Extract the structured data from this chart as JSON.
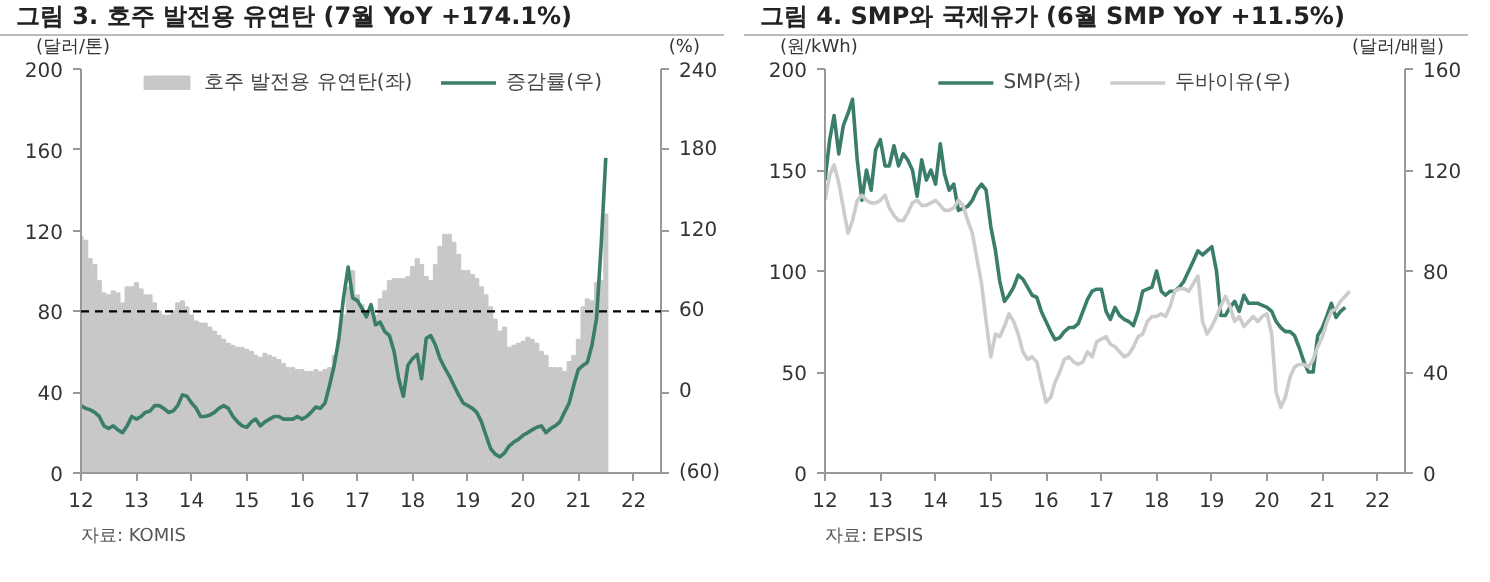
{
  "chart_data": [
    {
      "type": "bar",
      "title": "그림 3. 호주 발전용 유연탄 (7월 YoY +174.1%)",
      "ylabel": "(달러/톤)",
      "y2label": "(%)",
      "annotations": [
        "자료: KOMIS"
      ],
      "x": [
        "2012-01",
        "2012-02",
        "2012-03",
        "2012-04",
        "2012-05",
        "2012-06",
        "2012-07",
        "2012-08",
        "2012-09",
        "2012-10",
        "2012-11",
        "2012-12",
        "2013-01",
        "2013-02",
        "2013-03",
        "2013-04",
        "2013-05",
        "2013-06",
        "2013-07",
        "2013-08",
        "2013-09",
        "2013-10",
        "2013-11",
        "2013-12",
        "2014-01",
        "2014-02",
        "2014-03",
        "2014-04",
        "2014-05",
        "2014-06",
        "2014-07",
        "2014-08",
        "2014-09",
        "2014-10",
        "2014-11",
        "2014-12",
        "2015-01",
        "2015-02",
        "2015-03",
        "2015-04",
        "2015-05",
        "2015-06",
        "2015-07",
        "2015-08",
        "2015-09",
        "2015-10",
        "2015-11",
        "2015-12",
        "2016-01",
        "2016-02",
        "2016-03",
        "2016-04",
        "2016-05",
        "2016-06",
        "2016-07",
        "2016-08",
        "2016-09",
        "2016-10",
        "2016-11",
        "2016-12",
        "2017-01",
        "2017-02",
        "2017-03",
        "2017-04",
        "2017-05",
        "2017-06",
        "2017-07",
        "2017-08",
        "2017-09",
        "2017-10",
        "2017-11",
        "2017-12",
        "2018-01",
        "2018-02",
        "2018-03",
        "2018-04",
        "2018-05",
        "2018-06",
        "2018-07",
        "2018-08",
        "2018-09",
        "2018-10",
        "2018-11",
        "2018-12",
        "2019-01",
        "2019-02",
        "2019-03",
        "2019-04",
        "2019-05",
        "2019-06",
        "2019-07",
        "2019-08",
        "2019-09",
        "2019-10",
        "2019-11",
        "2019-12",
        "2020-01",
        "2020-02",
        "2020-03",
        "2020-04",
        "2020-05",
        "2020-06",
        "2020-07",
        "2020-08",
        "2020-09",
        "2020-10",
        "2020-11",
        "2020-12",
        "2021-01",
        "2021-02",
        "2021-03",
        "2021-04",
        "2021-05",
        "2021-06",
        "2021-07"
      ],
      "series": [
        {
          "name": "호주 발전용 유연탄(좌)",
          "type": "bar",
          "color": "#c8c8c8",
          "values": [
            117,
            115,
            106,
            103,
            95,
            89,
            88,
            90,
            89,
            84,
            92,
            92,
            94,
            91,
            88,
            88,
            84,
            80,
            78,
            78,
            80,
            84,
            85,
            82,
            78,
            75,
            74,
            74,
            72,
            70,
            68,
            66,
            64,
            63,
            62,
            62,
            61,
            60,
            58,
            57,
            59,
            58,
            57,
            56,
            54,
            52,
            52,
            51,
            51,
            50,
            50,
            51,
            50,
            51,
            52,
            58,
            66,
            78,
            92,
            100,
            88,
            83,
            80,
            82,
            78,
            86,
            90,
            95,
            96,
            96,
            96,
            97,
            102,
            106,
            103,
            97,
            95,
            103,
            112,
            118,
            118,
            114,
            108,
            100,
            100,
            98,
            96,
            92,
            88,
            82,
            76,
            70,
            72,
            62,
            63,
            64,
            65,
            67,
            66,
            64,
            60,
            58,
            52,
            52,
            52,
            50,
            55,
            58,
            66,
            82,
            86,
            85,
            94,
            95,
            128
          ]
        },
        {
          "name": "증감률(우)",
          "type": "line",
          "axis": "y2",
          "color": "#3a7d6b",
          "values": [
            -10,
            -12,
            -13,
            -15,
            -18,
            -25,
            -27,
            -25,
            -28,
            -30,
            -25,
            -18,
            -20,
            -18,
            -15,
            -14,
            -10,
            -10,
            -12,
            -15,
            -14,
            -10,
            -2,
            -3,
            -8,
            -12,
            -18,
            -18,
            -17,
            -15,
            -12,
            -10,
            -12,
            -18,
            -22,
            -25,
            -26,
            -22,
            -20,
            -25,
            -22,
            -20,
            -18,
            -18,
            -20,
            -20,
            -20,
            -18,
            -20,
            -18,
            -15,
            -11,
            -12,
            -8,
            5,
            20,
            40,
            70,
            93,
            70,
            68,
            62,
            56,
            65,
            50,
            52,
            45,
            42,
            30,
            10,
            -3,
            20,
            25,
            28,
            10,
            40,
            42,
            35,
            25,
            18,
            12,
            5,
            -2,
            -8,
            -10,
            -12,
            -15,
            -22,
            -32,
            -42,
            -46,
            -48,
            -45,
            -40,
            -37,
            -35,
            -32,
            -30,
            -28,
            -26,
            -25,
            -30,
            -27,
            -25,
            -22,
            -15,
            -8,
            5,
            17,
            20,
            22,
            35,
            55,
            110,
            174
          ]
        }
      ],
      "xlim": [
        "2012",
        "2022-07"
      ],
      "xticks": [
        {
          "value": "2012",
          "label": "12"
        },
        {
          "value": "2013",
          "label": "13"
        },
        {
          "value": "2014",
          "label": "14"
        },
        {
          "value": "2015",
          "label": "15"
        },
        {
          "value": "2016",
          "label": "16"
        },
        {
          "value": "2017",
          "label": "17"
        },
        {
          "value": "2018",
          "label": "18"
        },
        {
          "value": "2019",
          "label": "19"
        },
        {
          "value": "2020",
          "label": "20"
        },
        {
          "value": "2021",
          "label": "21"
        },
        {
          "value": "2022",
          "label": "22"
        }
      ],
      "ylim": [
        0,
        200
      ],
      "yticks": [
        0,
        40,
        80,
        120,
        160,
        200
      ],
      "y2lim": [
        -60,
        240
      ],
      "y2ticks": [
        {
          "value": -60,
          "label": "(60)"
        },
        0,
        60,
        120,
        180,
        240
      ],
      "ref_lines": [
        {
          "axis": "y",
          "value": 80,
          "color": "#000000",
          "line_style": "dashed"
        }
      ],
      "legend": "top",
      "grid": false
    },
    {
      "type": "line",
      "title": "그림 4. SMP와 국제유가 (6월 SMP YoY +11.5%)",
      "ylabel": "(원/kWh)",
      "y2label": "(달러/배럴)",
      "annotations": [
        "자료: EPSIS"
      ],
      "x": [
        "2012-01",
        "2012-02",
        "2012-03",
        "2012-04",
        "2012-05",
        "2012-06",
        "2012-07",
        "2012-08",
        "2012-09",
        "2012-10",
        "2012-11",
        "2012-12",
        "2013-01",
        "2013-02",
        "2013-03",
        "2013-04",
        "2013-05",
        "2013-06",
        "2013-07",
        "2013-08",
        "2013-09",
        "2013-10",
        "2013-11",
        "2013-12",
        "2014-01",
        "2014-02",
        "2014-03",
        "2014-04",
        "2014-05",
        "2014-06",
        "2014-07",
        "2014-08",
        "2014-09",
        "2014-10",
        "2014-11",
        "2014-12",
        "2015-01",
        "2015-02",
        "2015-03",
        "2015-04",
        "2015-05",
        "2015-06",
        "2015-07",
        "2015-08",
        "2015-09",
        "2015-10",
        "2015-11",
        "2015-12",
        "2016-01",
        "2016-02",
        "2016-03",
        "2016-04",
        "2016-05",
        "2016-06",
        "2016-07",
        "2016-08",
        "2016-09",
        "2016-10",
        "2016-11",
        "2016-12",
        "2017-01",
        "2017-02",
        "2017-03",
        "2017-04",
        "2017-05",
        "2017-06",
        "2017-07",
        "2017-08",
        "2017-09",
        "2017-10",
        "2017-11",
        "2017-12",
        "2018-01",
        "2018-02",
        "2018-03",
        "2018-04",
        "2018-05",
        "2018-06",
        "2018-07",
        "2018-08",
        "2018-09",
        "2018-10",
        "2018-11",
        "2018-12",
        "2019-01",
        "2019-02",
        "2019-03",
        "2019-04",
        "2019-05",
        "2019-06",
        "2019-07",
        "2019-08",
        "2019-09",
        "2019-10",
        "2019-11",
        "2019-12",
        "2020-01",
        "2020-02",
        "2020-03",
        "2020-04",
        "2020-05",
        "2020-06",
        "2020-07",
        "2020-08",
        "2020-09",
        "2020-10",
        "2020-11",
        "2020-12",
        "2021-01",
        "2021-02",
        "2021-03",
        "2021-04",
        "2021-05",
        "2021-06",
        "2021-07"
      ],
      "series": [
        {
          "name": "SMP(좌)",
          "color": "#3a7d6b",
          "values": [
            145,
            165,
            177,
            158,
            172,
            178,
            185,
            155,
            135,
            150,
            140,
            160,
            165,
            152,
            152,
            162,
            152,
            158,
            155,
            150,
            137,
            155,
            145,
            150,
            143,
            163,
            148,
            140,
            143,
            130,
            131,
            132,
            135,
            140,
            143,
            140,
            122,
            110,
            95,
            85,
            88,
            92,
            98,
            96,
            92,
            88,
            87,
            80,
            75,
            70,
            66,
            67,
            70,
            72,
            72,
            74,
            80,
            86,
            90,
            91,
            91,
            80,
            76,
            82,
            78,
            76,
            75,
            73,
            80,
            90,
            91,
            92,
            100,
            90,
            88,
            90,
            90,
            92,
            95,
            100,
            105,
            110,
            108,
            110,
            112,
            100,
            78,
            78,
            82,
            85,
            80,
            88,
            84,
            84,
            84,
            83,
            82,
            80,
            75,
            72,
            70,
            70,
            68,
            62,
            55,
            50,
            50,
            68,
            72,
            78,
            84,
            77,
            80,
            82,
            null
          ]
        },
        {
          "name": "두바이유(우)",
          "axis": "y2",
          "color": "#cccccc",
          "values": [
            108,
            118,
            122,
            115,
            105,
            95,
            100,
            108,
            110,
            108,
            107,
            107,
            108,
            110,
            105,
            102,
            100,
            100,
            103,
            107,
            108,
            106,
            106,
            107,
            108,
            106,
            104,
            104,
            105,
            108,
            106,
            100,
            95,
            85,
            75,
            60,
            46,
            55,
            54,
            58,
            63,
            60,
            55,
            48,
            45,
            46,
            44,
            36,
            28,
            30,
            36,
            40,
            45,
            46,
            44,
            43,
            44,
            48,
            46,
            52,
            53,
            54,
            51,
            50,
            48,
            46,
            47,
            50,
            54,
            55,
            60,
            62,
            62,
            63,
            62,
            66,
            72,
            73,
            73,
            72,
            75,
            78,
            60,
            55,
            58,
            62,
            66,
            70,
            66,
            60,
            62,
            58,
            60,
            62,
            60,
            62,
            63,
            55,
            32,
            26,
            30,
            38,
            42,
            43,
            43,
            42,
            45,
            50,
            54,
            60,
            64,
            65,
            68,
            70,
            72
          ]
        }
      ],
      "xlim": [
        "2012",
        "2022-07"
      ],
      "xticks": [
        {
          "value": "2012",
          "label": "12"
        },
        {
          "value": "2013",
          "label": "13"
        },
        {
          "value": "2014",
          "label": "14"
        },
        {
          "value": "2015",
          "label": "15"
        },
        {
          "value": "2016",
          "label": "16"
        },
        {
          "value": "2017",
          "label": "17"
        },
        {
          "value": "2018",
          "label": "18"
        },
        {
          "value": "2019",
          "label": "19"
        },
        {
          "value": "2020",
          "label": "20"
        },
        {
          "value": "2021",
          "label": "21"
        },
        {
          "value": "2022",
          "label": "22"
        }
      ],
      "ylim": [
        0,
        200
      ],
      "yticks": [
        0,
        50,
        100,
        150,
        200
      ],
      "y2lim": [
        0,
        160
      ],
      "y2ticks": [
        0,
        40,
        80,
        120,
        160
      ],
      "legend": "top",
      "grid": false
    }
  ]
}
